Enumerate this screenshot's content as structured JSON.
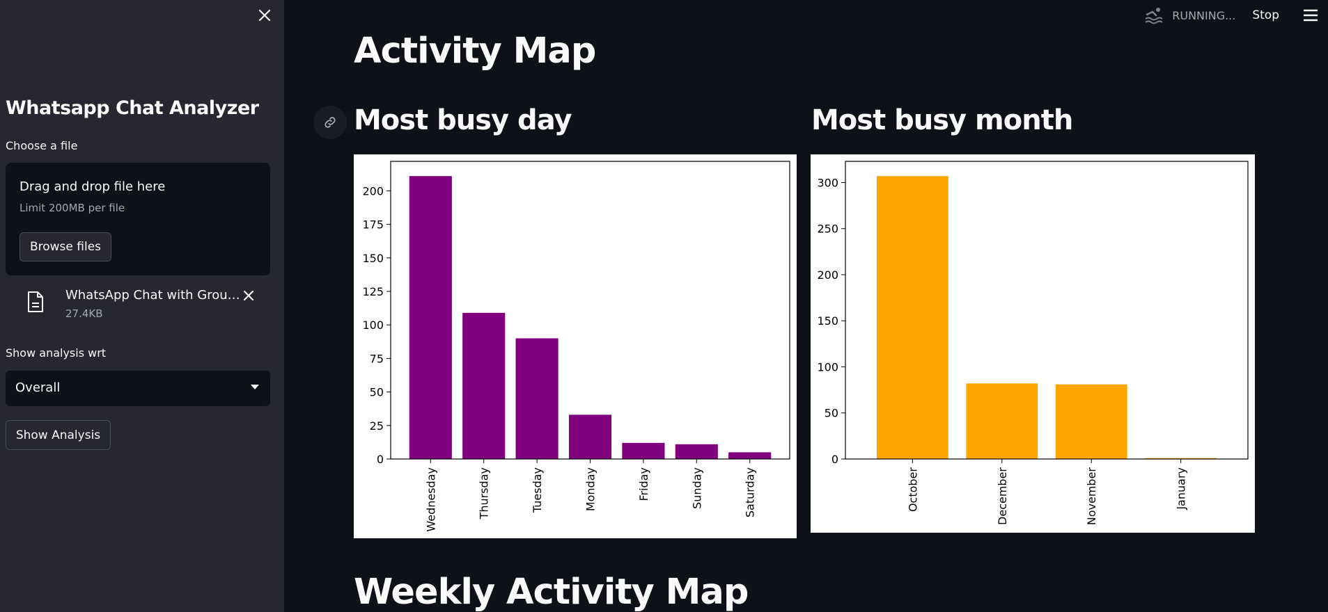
{
  "sidebar": {
    "title": "Whatsapp Chat Analyzer",
    "file_label": "Choose a file",
    "dropzone": {
      "title": "Drag and drop file here",
      "limit": "Limit 200MB per file",
      "browse_label": "Browse files"
    },
    "file": {
      "name": "WhatsApp Chat with Group ...",
      "size": "27.4KB"
    },
    "analysis_label": "Show analysis wrt",
    "select_value": "Overall",
    "show_button": "Show Analysis"
  },
  "header": {
    "status": "RUNNING...",
    "stop": "Stop"
  },
  "main": {
    "title": "Activity Map",
    "day_title": "Most busy day",
    "month_title": "Most busy month",
    "weekly_title": "Weekly Activity Map"
  },
  "chart_data": [
    {
      "type": "bar",
      "title": "",
      "categories": [
        "Wednesday",
        "Thursday",
        "Tuesday",
        "Monday",
        "Friday",
        "Sunday",
        "Saturday"
      ],
      "values": [
        211,
        109,
        90,
        33,
        12,
        11,
        5
      ],
      "color": "#800080",
      "yticks": [
        0,
        25,
        50,
        75,
        100,
        125,
        150,
        175,
        200
      ],
      "ylim": [
        0,
        222
      ]
    },
    {
      "type": "bar",
      "title": "",
      "categories": [
        "October",
        "December",
        "November",
        "January"
      ],
      "values": [
        307,
        82,
        81,
        1
      ],
      "color": "#ffa500",
      "yticks": [
        0,
        50,
        100,
        150,
        200,
        250,
        300
      ],
      "ylim": [
        0,
        323
      ]
    }
  ]
}
